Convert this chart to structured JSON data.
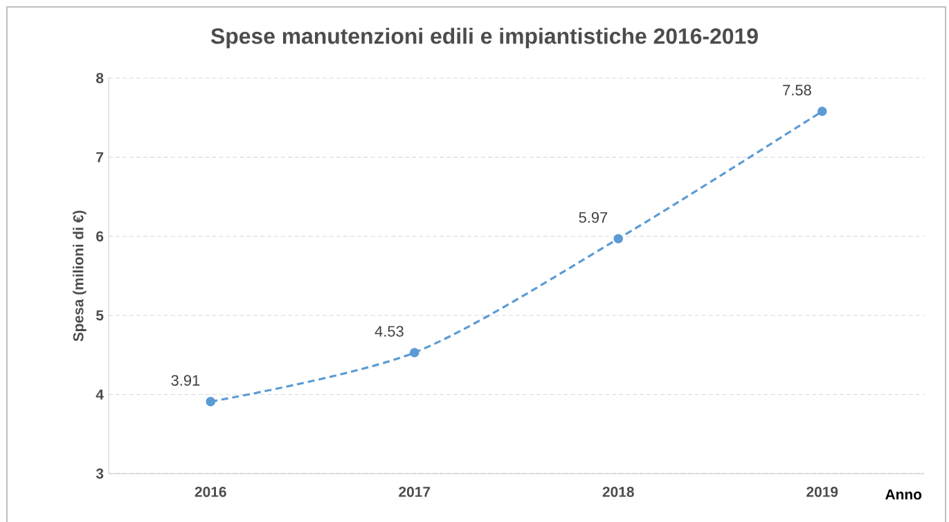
{
  "chart_data": {
    "type": "line",
    "title": "Spese manutenzioni edili e impiantistiche 2016-2019",
    "xlabel": "Anno",
    "ylabel": "Spesa  (milioni di €)",
    "categories": [
      "2016",
      "2017",
      "2018",
      "2019"
    ],
    "values": [
      3.91,
      4.53,
      5.97,
      7.58
    ],
    "color": "#5b9bd5",
    "ylim": [
      3,
      8
    ],
    "yticks": [
      3,
      4,
      5,
      6,
      7,
      8
    ],
    "grid": "y",
    "data_labels": true,
    "marker": "circle",
    "line_style": "dashed"
  }
}
